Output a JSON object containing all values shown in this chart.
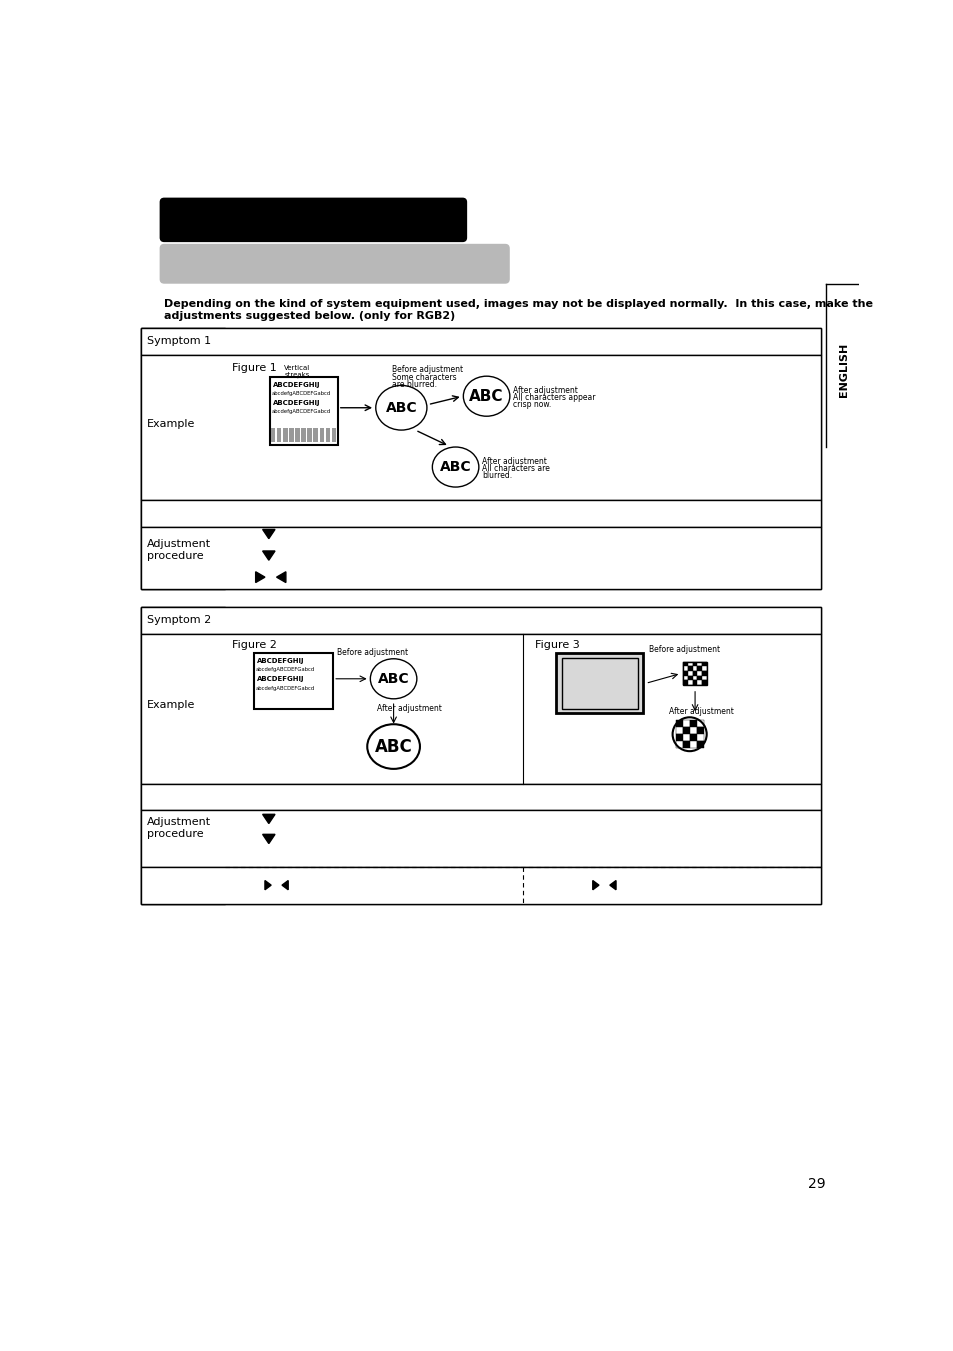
{
  "page_bg": "#ffffff",
  "page_number": "29",
  "title_bar_color": "#000000",
  "subtitle_bar_color": "#b0b0b0",
  "english_sidebar_text": "ENGLISH",
  "intro_text": "Depending on the kind of system equipment used, images may not be displayed normally.  In this case, make the\nadjustments suggested below. (only for RGB2)",
  "symptom1_label": "Symptom 1",
  "symptom2_label": "Symptom 2",
  "example_label": "Example",
  "adjustment_label": "Adjustment\nprocedure",
  "figure1_label": "Figure 1",
  "figure2_label": "Figure 2",
  "figure3_label": "Figure 3",
  "before_adj1": "Before adjustment\nSome characters\nare blurred.",
  "after_adj1a": "After adjustment\nAll characters appear\ncrisp now.",
  "after_adj1b": "After adjustment\nAll characters are\nblurred.",
  "before_adj2": "Before adjustment",
  "after_adj2": "After adjustment",
  "before_adj3": "Before adjustment",
  "after_adj3": "After adjustment",
  "abc_text": "ABC",
  "vertical_streaks": "Vertical\nstreaks"
}
